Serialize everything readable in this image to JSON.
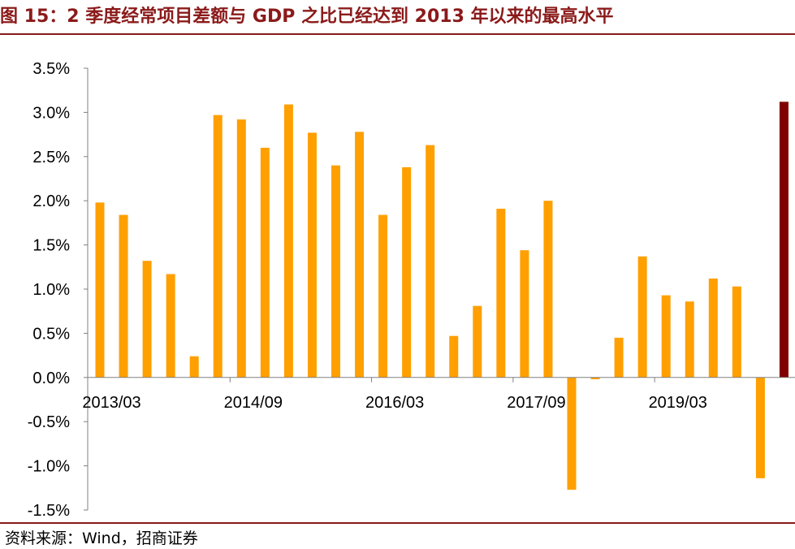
{
  "header": {
    "title": "图 15：2 季度经常项目差额与 GDP 之比已经达到 2013 年以来的最高水平"
  },
  "footer": {
    "source": "资料来源：Wind，招商证券"
  },
  "colors": {
    "brand": "#8B1A1A",
    "bar": "#FF9F00",
    "highlight_bar": "#800000",
    "axis": "#808080"
  },
  "chart_data": {
    "type": "bar",
    "title": "",
    "xlabel": "",
    "ylabel": "",
    "ylim": [
      -0.015,
      0.035
    ],
    "y_ticks": [
      -0.015,
      -0.01,
      -0.005,
      0,
      0.005,
      0.01,
      0.015,
      0.02,
      0.025,
      0.03,
      0.035
    ],
    "y_tick_labels": [
      "-1.5%",
      "-1.0%",
      "-0.5%",
      "0.0%",
      "0.5%",
      "1.0%",
      "1.5%",
      "2.0%",
      "2.5%",
      "3.0%",
      "3.5%"
    ],
    "x_tick_labels": [
      "2013/03",
      "2014/09",
      "2016/03",
      "2017/09",
      "2019/03"
    ],
    "x_tick_category_index": [
      0,
      6,
      12,
      18,
      24
    ],
    "grid": false,
    "legend": "none",
    "categories": [
      "2013/03",
      "2013/06",
      "2013/09",
      "2013/12",
      "2014/03",
      "2014/06",
      "2014/09",
      "2014/12",
      "2015/03",
      "2015/06",
      "2015/09",
      "2015/12",
      "2016/03",
      "2016/06",
      "2016/09",
      "2016/12",
      "2017/03",
      "2017/06",
      "2017/09",
      "2017/12",
      "2018/03",
      "2018/06",
      "2018/09",
      "2018/12",
      "2019/03",
      "2019/06",
      "2019/09",
      "2019/12",
      "2020/03",
      "2020/06"
    ],
    "values": [
      0.0198,
      0.0184,
      0.0132,
      0.0117,
      0.0024,
      0.0297,
      0.0292,
      0.026,
      0.0309,
      0.0277,
      0.024,
      0.0278,
      0.0184,
      0.0238,
      0.0263,
      0.0047,
      0.0081,
      0.0191,
      0.0144,
      0.02,
      -0.0127,
      -0.0002,
      0.0045,
      0.0137,
      0.0093,
      0.0086,
      0.0112,
      0.0103,
      -0.0114,
      0.0312
    ],
    "highlight_index": 29
  }
}
